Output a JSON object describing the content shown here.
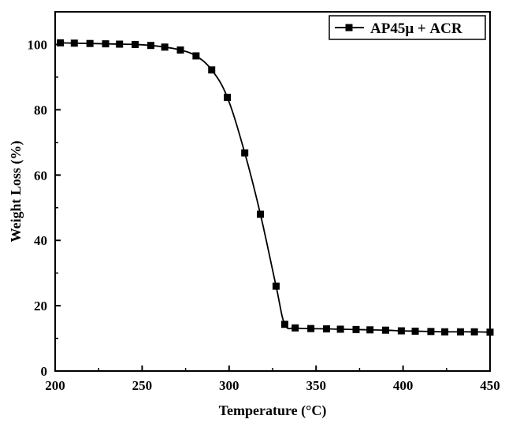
{
  "chart_data": {
    "type": "line",
    "title": "",
    "xlabel": "Temperature (°C)",
    "ylabel": "Weight Loss (%)",
    "xlim": [
      200,
      450
    ],
    "ylim": [
      0,
      110
    ],
    "x_ticks": [
      200,
      250,
      300,
      350,
      400,
      450
    ],
    "y_ticks": [
      0,
      20,
      40,
      60,
      80,
      100
    ],
    "grid": false,
    "legend": "top-right",
    "marker": "square",
    "line_color": "#000000",
    "series": [
      {
        "name": "AP45μ + ACR",
        "x": [
          203,
          211,
          220,
          229,
          237,
          246,
          255,
          263,
          272,
          281,
          290,
          299,
          309,
          318,
          327,
          332,
          338,
          347,
          356,
          364,
          373,
          381,
          390,
          399,
          407,
          416,
          424,
          433,
          441,
          450
        ],
        "y": [
          100.5,
          100.4,
          100.3,
          100.2,
          100.1,
          100.0,
          99.7,
          99.2,
          98.3,
          96.5,
          92.2,
          83.8,
          66.8,
          48.0,
          26.0,
          14.3,
          13.2,
          13.0,
          12.9,
          12.8,
          12.7,
          12.6,
          12.5,
          12.3,
          12.2,
          12.1,
          12.0,
          12.0,
          12.0,
          11.9
        ]
      }
    ]
  }
}
